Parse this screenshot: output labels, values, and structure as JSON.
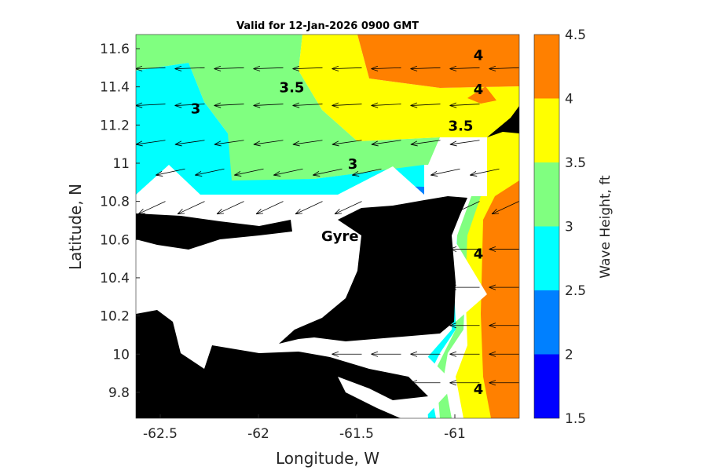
{
  "chart_data": {
    "type": "contour-map",
    "title": "Valid for 12-Jan-2026 0900 GMT",
    "xlabel": "Longitude, W",
    "ylabel": "Latitude, N",
    "xlim": [
      -62.624,
      -60.672
    ],
    "ylim": [
      9.664,
      11.674
    ],
    "xticks": [
      -62.5,
      -62,
      -61.5,
      -61
    ],
    "xtick_labels": [
      "-62.5",
      "-62",
      "-61.5",
      "-61"
    ],
    "yticks": [
      9.8,
      10,
      10.2,
      10.4,
      10.6,
      10.8,
      11,
      11.2,
      11.4,
      11.6
    ],
    "ytick_labels": [
      "9.8",
      "10",
      "10.2",
      "10.4",
      "10.6",
      "10.8",
      "11",
      "11.2",
      "11.4",
      "11.6"
    ],
    "colorbar": {
      "label": "Wave Height, ft",
      "levels": [
        1.5,
        2,
        2.5,
        3,
        3.5,
        4,
        4.5
      ],
      "tick_labels": [
        "1.5",
        "2",
        "2.5",
        "3",
        "3.5",
        "4",
        "4.5"
      ],
      "colors": [
        "#0000ff",
        "#0080ff",
        "#00ffff",
        "#80ff80",
        "#ffff00",
        "#ff8000"
      ]
    },
    "contour_labels": [
      {
        "text": "4",
        "lon": -60.88,
        "lat": 11.57
      },
      {
        "text": "4",
        "lon": -60.88,
        "lat": 11.39
      },
      {
        "text": "3.5",
        "lon": -61.83,
        "lat": 11.4
      },
      {
        "text": "3.5",
        "lon": -60.97,
        "lat": 11.2
      },
      {
        "text": "3",
        "lon": -62.32,
        "lat": 11.29
      },
      {
        "text": "3",
        "lon": -61.52,
        "lat": 11.0
      },
      {
        "text": "4",
        "lon": -60.88,
        "lat": 10.53
      },
      {
        "text": "4",
        "lon": -60.88,
        "lat": 9.82
      }
    ],
    "place_label": {
      "text": "Gyre",
      "lon": -61.63,
      "lat": 10.61
    },
    "wind_vectors": [
      {
        "lat": 11.5,
        "dir_deg": 182,
        "lons": [
          -62.55,
          -62.35,
          -62.15,
          -61.95,
          -61.75,
          -61.55,
          -61.35,
          -61.15,
          -60.95,
          -60.75
        ]
      },
      {
        "lat": 11.31,
        "dir_deg": 183,
        "lons": [
          -62.55,
          -62.35,
          -62.15,
          -61.95,
          -61.75,
          -61.55,
          -61.35,
          -61.15,
          -60.95
        ]
      },
      {
        "lat": 11.12,
        "dir_deg": 188,
        "lons": [
          -62.55,
          -62.35,
          -62.15,
          -61.95,
          -61.75,
          -61.55,
          -61.35,
          -61.15,
          -60.95
        ]
      },
      {
        "lat": 10.97,
        "dir_deg": 192,
        "lons": [
          -62.45,
          -62.25,
          -62.05,
          -61.85,
          -61.65,
          -61.45,
          -61.05,
          -60.85
        ]
      },
      {
        "lat": 10.8,
        "dir_deg": 205,
        "lons": [
          -62.55,
          -62.35,
          -62.15,
          -61.95,
          -61.75,
          -61.55,
          -60.95,
          -60.75
        ]
      },
      {
        "lat": 10.55,
        "dir_deg": 180,
        "lons": [
          -60.95,
          -60.75
        ]
      },
      {
        "lat": 10.35,
        "dir_deg": 180,
        "lons": [
          -60.95,
          -60.75
        ]
      },
      {
        "lat": 10.15,
        "dir_deg": 180,
        "lons": [
          -60.95,
          -60.75
        ]
      },
      {
        "lat": 10.0,
        "dir_deg": 180,
        "lons": [
          -61.55,
          -61.35,
          -61.15,
          -60.95,
          -60.75
        ]
      },
      {
        "lat": 9.85,
        "dir_deg": 180,
        "lons": [
          -61.35,
          -61.15,
          -60.95,
          -60.75
        ]
      }
    ]
  }
}
